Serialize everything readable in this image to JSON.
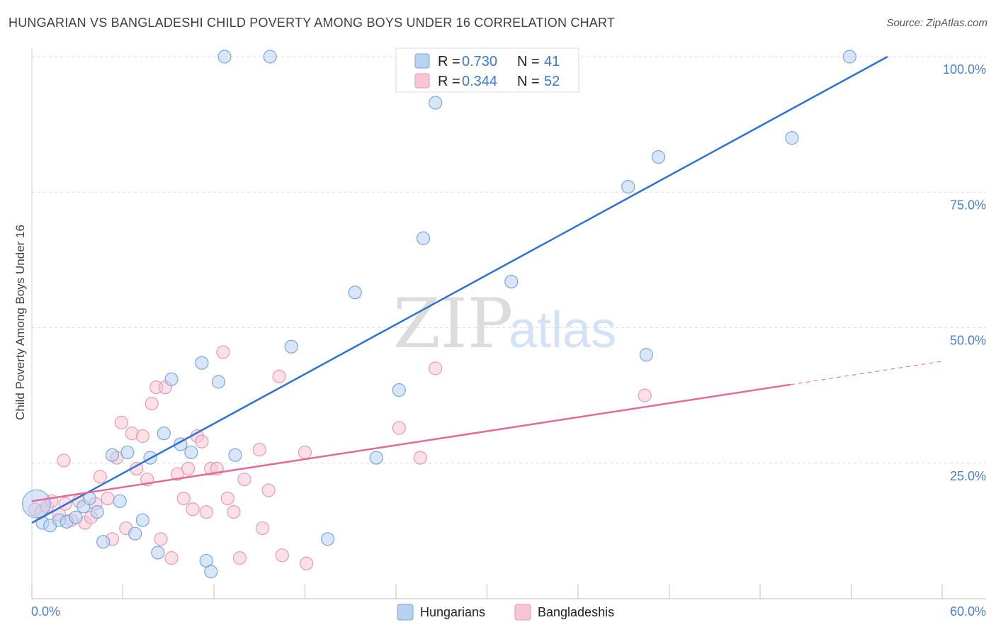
{
  "title": "HUNGARIAN VS BANGLADESHI CHILD POVERTY AMONG BOYS UNDER 16 CORRELATION CHART",
  "source": "Source: ZipAtlas.com",
  "watermark": {
    "zip": "ZIP",
    "atlas": "atlas"
  },
  "colors": {
    "blue_fill": "#b8d2f2",
    "blue_stroke": "#7aa6dc",
    "blue_line": "#2d72d2",
    "pink_fill": "#f7c6d6",
    "pink_stroke": "#e89ab3",
    "pink_line": "#e2699a",
    "grid": "#dcdcdc",
    "tick_text": "#4a7fcf"
  },
  "legend": {
    "rows": [
      {
        "r_label": "R = ",
        "r_value": "0.730",
        "n_label": "N = ",
        "n_value": "41"
      },
      {
        "r_label": "R = ",
        "r_value": "0.344",
        "n_label": "N = ",
        "n_value": "52"
      }
    ]
  },
  "bottom_legend": [
    "Hungarians",
    "Bangladeshis"
  ],
  "chart_data": {
    "type": "scatter",
    "title": "HUNGARIAN VS BANGLADESHI CHILD POVERTY AMONG BOYS UNDER 16 CORRELATION CHART",
    "xlabel": "",
    "ylabel": "Child Poverty Among Boys Under 16",
    "xlim": [
      0,
      60
    ],
    "ylim": [
      0,
      100
    ],
    "x_ticks": [
      "0.0%",
      "60.0%"
    ],
    "y_ticks": [
      "100.0%",
      "75.0%",
      "50.0%",
      "25.0%"
    ],
    "y_tick_values": [
      100,
      75,
      50,
      25
    ],
    "grid": true,
    "legend_position": "top-center",
    "series": [
      {
        "name": "Hungarians",
        "R": 0.73,
        "N": 41,
        "trend": {
          "x": [
            0,
            56.4
          ],
          "y": [
            14.0,
            100.0
          ]
        },
        "points": [
          {
            "x": 0.3,
            "y": 17.5,
            "s": 2.2
          },
          {
            "x": 0.7,
            "y": 14.0
          },
          {
            "x": 1.2,
            "y": 13.5
          },
          {
            "x": 1.8,
            "y": 14.5
          },
          {
            "x": 2.3,
            "y": 14.2
          },
          {
            "x": 2.9,
            "y": 15.0
          },
          {
            "x": 3.4,
            "y": 17.0
          },
          {
            "x": 3.8,
            "y": 18.5
          },
          {
            "x": 4.3,
            "y": 16.0
          },
          {
            "x": 4.7,
            "y": 10.5
          },
          {
            "x": 5.3,
            "y": 26.5
          },
          {
            "x": 5.8,
            "y": 18.0
          },
          {
            "x": 6.3,
            "y": 27.0
          },
          {
            "x": 6.8,
            "y": 12.0
          },
          {
            "x": 7.3,
            "y": 14.5
          },
          {
            "x": 7.8,
            "y": 26.0
          },
          {
            "x": 8.3,
            "y": 8.5
          },
          {
            "x": 8.7,
            "y": 30.5
          },
          {
            "x": 9.2,
            "y": 40.5
          },
          {
            "x": 9.8,
            "y": 28.5
          },
          {
            "x": 10.5,
            "y": 27.0
          },
          {
            "x": 11.2,
            "y": 43.5
          },
          {
            "x": 11.5,
            "y": 7.0
          },
          {
            "x": 11.8,
            "y": 5.0
          },
          {
            "x": 12.3,
            "y": 40.0
          },
          {
            "x": 12.7,
            "y": 100.0
          },
          {
            "x": 13.4,
            "y": 26.5
          },
          {
            "x": 15.7,
            "y": 100.0
          },
          {
            "x": 17.1,
            "y": 46.5
          },
          {
            "x": 19.5,
            "y": 11.0
          },
          {
            "x": 21.3,
            "y": 56.5
          },
          {
            "x": 22.7,
            "y": 26.0
          },
          {
            "x": 24.2,
            "y": 38.5
          },
          {
            "x": 25.8,
            "y": 66.5
          },
          {
            "x": 26.6,
            "y": 91.5
          },
          {
            "x": 31.6,
            "y": 58.5
          },
          {
            "x": 39.3,
            "y": 76.0
          },
          {
            "x": 40.5,
            "y": 45.0
          },
          {
            "x": 41.3,
            "y": 81.5
          },
          {
            "x": 50.1,
            "y": 85.0
          },
          {
            "x": 53.9,
            "y": 100.0
          }
        ]
      },
      {
        "name": "Bangladeshis",
        "R": 0.344,
        "N": 52,
        "trend": {
          "x": [
            0,
            50.0
          ],
          "y": [
            18.0,
            39.5
          ]
        },
        "trend_dashed": {
          "x": [
            50.0,
            60.0
          ],
          "y": [
            39.5,
            43.8
          ]
        },
        "points": [
          {
            "x": 0.2,
            "y": 16.5
          },
          {
            "x": 0.6,
            "y": 16.0
          },
          {
            "x": 1.0,
            "y": 17.0
          },
          {
            "x": 1.3,
            "y": 18.0
          },
          {
            "x": 1.8,
            "y": 15.5
          },
          {
            "x": 2.2,
            "y": 17.5
          },
          {
            "x": 2.1,
            "y": 25.5
          },
          {
            "x": 2.6,
            "y": 14.5
          },
          {
            "x": 3.1,
            "y": 18.0
          },
          {
            "x": 3.5,
            "y": 14.0
          },
          {
            "x": 3.9,
            "y": 15.0
          },
          {
            "x": 4.2,
            "y": 17.5
          },
          {
            "x": 4.5,
            "y": 22.5
          },
          {
            "x": 5.0,
            "y": 18.5
          },
          {
            "x": 5.3,
            "y": 11.0
          },
          {
            "x": 5.6,
            "y": 26.0
          },
          {
            "x": 5.9,
            "y": 32.5
          },
          {
            "x": 6.2,
            "y": 13.0
          },
          {
            "x": 6.6,
            "y": 30.5
          },
          {
            "x": 6.9,
            "y": 24.0
          },
          {
            "x": 7.3,
            "y": 30.0
          },
          {
            "x": 7.6,
            "y": 22.0
          },
          {
            "x": 7.9,
            "y": 36.0
          },
          {
            "x": 8.2,
            "y": 39.0
          },
          {
            "x": 8.5,
            "y": 11.0
          },
          {
            "x": 8.8,
            "y": 39.0
          },
          {
            "x": 9.2,
            "y": 7.5
          },
          {
            "x": 9.6,
            "y": 23.0
          },
          {
            "x": 10.0,
            "y": 18.5
          },
          {
            "x": 10.3,
            "y": 24.0
          },
          {
            "x": 10.6,
            "y": 16.5
          },
          {
            "x": 10.9,
            "y": 30.0
          },
          {
            "x": 11.2,
            "y": 29.0
          },
          {
            "x": 11.5,
            "y": 16.0
          },
          {
            "x": 11.8,
            "y": 24.0
          },
          {
            "x": 12.2,
            "y": 24.0
          },
          {
            "x": 12.6,
            "y": 45.5
          },
          {
            "x": 12.9,
            "y": 18.5
          },
          {
            "x": 13.3,
            "y": 16.0
          },
          {
            "x": 13.7,
            "y": 7.5
          },
          {
            "x": 14.0,
            "y": 22.0
          },
          {
            "x": 15.0,
            "y": 27.5
          },
          {
            "x": 15.2,
            "y": 13.0
          },
          {
            "x": 15.6,
            "y": 20.0
          },
          {
            "x": 16.3,
            "y": 41.0
          },
          {
            "x": 16.5,
            "y": 8.0
          },
          {
            "x": 18.0,
            "y": 27.0
          },
          {
            "x": 18.1,
            "y": 6.5
          },
          {
            "x": 24.2,
            "y": 31.5
          },
          {
            "x": 25.6,
            "y": 26.0
          },
          {
            "x": 26.6,
            "y": 42.5
          },
          {
            "x": 40.4,
            "y": 37.5
          }
        ]
      }
    ]
  }
}
